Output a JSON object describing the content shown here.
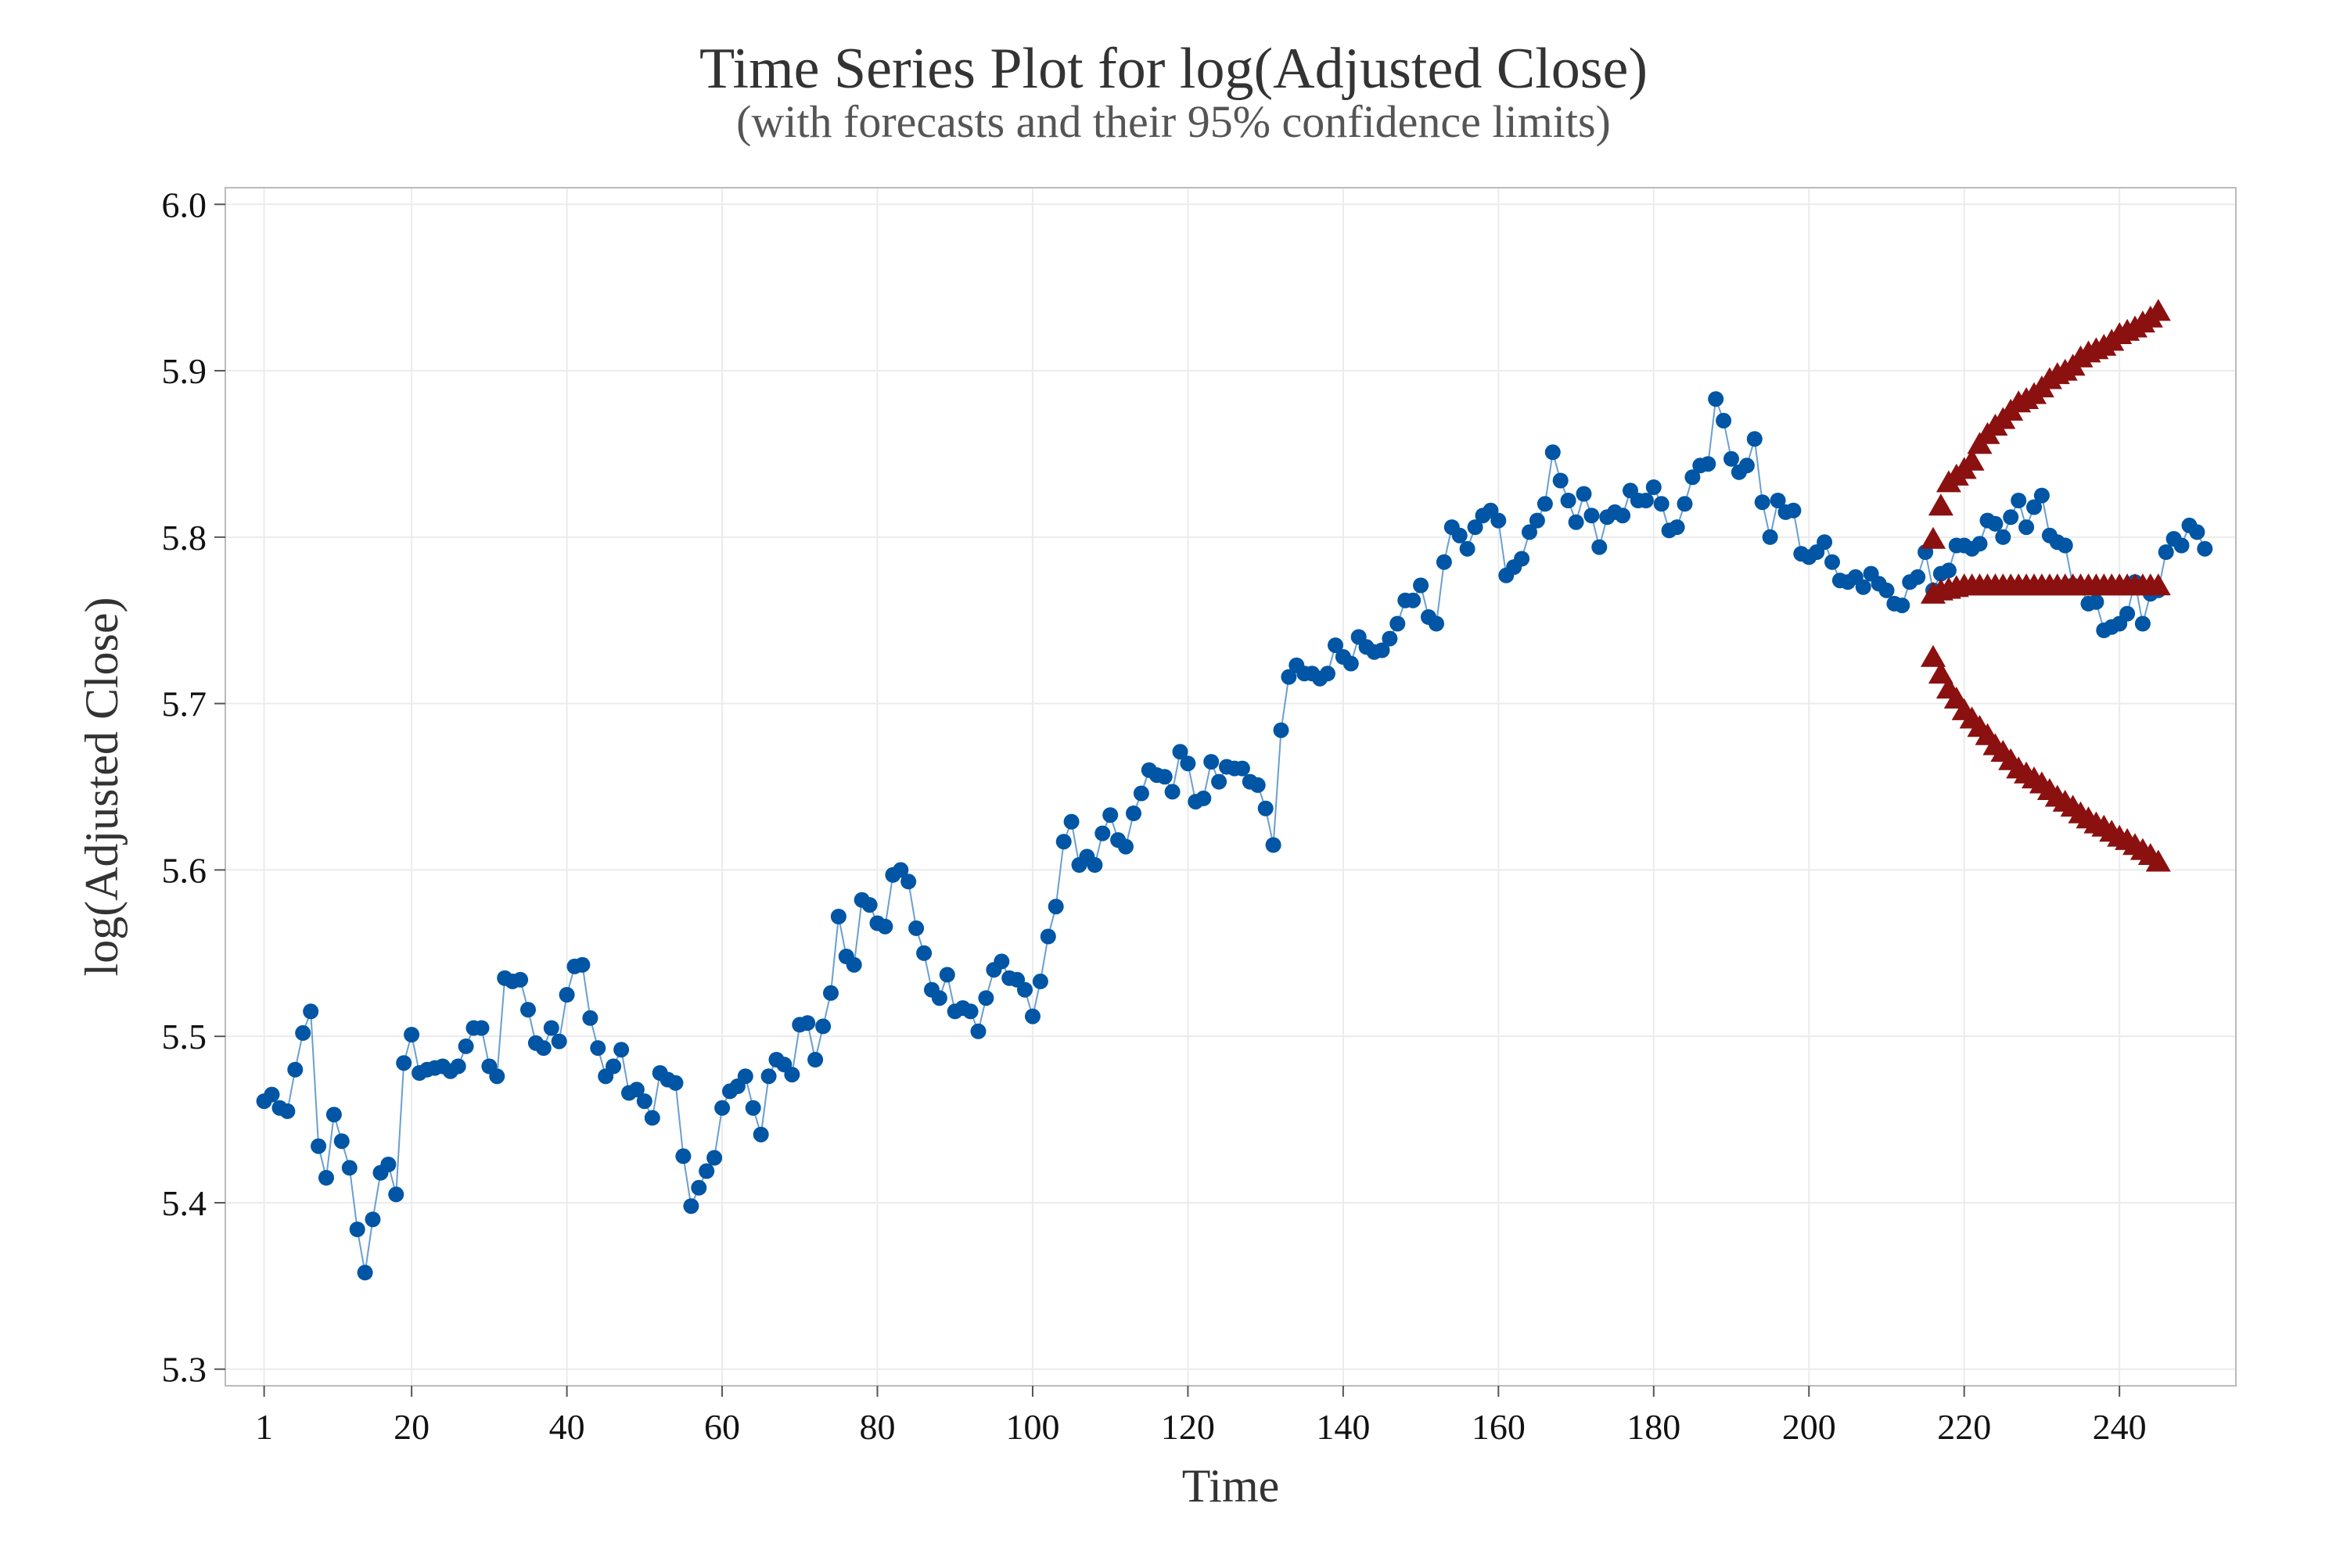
{
  "chart_data": {
    "type": "scatter",
    "title": "Time Series Plot for log(Adjusted Close)",
    "subtitle": "(with forecasts and their 95% confidence limits)",
    "xlabel": "Time",
    "ylabel": "log(Adjusted Close)",
    "xlim": [
      -4,
      255
    ],
    "ylim": [
      5.29,
      6.01
    ],
    "x_ticks": [
      1,
      20,
      40,
      60,
      80,
      100,
      120,
      140,
      160,
      180,
      200,
      220,
      240
    ],
    "y_ticks": [
      5.3,
      5.4,
      5.5,
      5.6,
      5.7,
      5.8,
      5.9,
      6.0
    ],
    "y_tick_labels": [
      "5.3",
      "5.4",
      "5.5",
      "5.6",
      "5.7",
      "5.8",
      "5.9",
      "6.0"
    ],
    "grid": true,
    "legend": "none",
    "colors": {
      "observed": "#0055a4",
      "observed_line": "#6a9fd0",
      "forecast": "#8b1010"
    },
    "series": [
      {
        "marker": "circle",
        "connected": true,
        "x_start": 1,
        "x_step": 1,
        "values": [
          5.461,
          5.465,
          5.457,
          5.455,
          5.48,
          5.502,
          5.515,
          5.434,
          5.415,
          5.453,
          5.437,
          5.421,
          5.384,
          5.358,
          5.39,
          5.418,
          5.423,
          5.405,
          5.484,
          5.501,
          5.478,
          5.48,
          5.481,
          5.482,
          5.479,
          5.482,
          5.494,
          5.505,
          5.505,
          5.482,
          5.476,
          5.535,
          5.533,
          5.534,
          5.516,
          5.496,
          5.493,
          5.505,
          5.497,
          5.525,
          5.542,
          5.543,
          5.511,
          5.493,
          5.476,
          5.482,
          5.492,
          5.466,
          5.468,
          5.461,
          5.451,
          5.478,
          5.474,
          5.472,
          5.428,
          5.398,
          5.409,
          5.419,
          5.427,
          5.457,
          5.467,
          5.47,
          5.476,
          5.457,
          5.441,
          5.476,
          5.486,
          5.483,
          5.477,
          5.507,
          5.508,
          5.486,
          5.506,
          5.526,
          5.572,
          5.548,
          5.543,
          5.582,
          5.579,
          5.568,
          5.566,
          5.597,
          5.6,
          5.593,
          5.565,
          5.55,
          5.528,
          5.523,
          5.537,
          5.515,
          5.517,
          5.515,
          5.503,
          5.523,
          5.54,
          5.545,
          5.535,
          5.534,
          5.528,
          5.512,
          5.533,
          5.56,
          5.578,
          5.617,
          5.629,
          5.603,
          5.608,
          5.603,
          5.622,
          5.633,
          5.618,
          5.614,
          5.634,
          5.646,
          5.66,
          5.657,
          5.656,
          5.647,
          5.671,
          5.664,
          5.641,
          5.643,
          5.665,
          5.653,
          5.662,
          5.661,
          5.661,
          5.653,
          5.651,
          5.637,
          5.615,
          5.684,
          5.716,
          5.723,
          5.718,
          5.718,
          5.715,
          5.718,
          5.735,
          5.728,
          5.724,
          5.74,
          5.734,
          5.731,
          5.732,
          5.739,
          5.748,
          5.762,
          5.762,
          5.771,
          5.752,
          5.748,
          5.785,
          5.806,
          5.801,
          5.793,
          5.806,
          5.813,
          5.816,
          5.81,
          5.777,
          5.782,
          5.787,
          5.803,
          5.81,
          5.82,
          5.851,
          5.834,
          5.822,
          5.809,
          5.826,
          5.813,
          5.794,
          5.812,
          5.815,
          5.813,
          5.828,
          5.822,
          5.822,
          5.83,
          5.82,
          5.804,
          5.806,
          5.82,
          5.836,
          5.843,
          5.844,
          5.883,
          5.87,
          5.847,
          5.839,
          5.843,
          5.859,
          5.821,
          5.8,
          5.822,
          5.815,
          5.816,
          5.79,
          5.788,
          5.791,
          5.797,
          5.785,
          5.774,
          5.773,
          5.776,
          5.77,
          5.778,
          5.772,
          5.768,
          5.76,
          5.759,
          5.773,
          5.776,
          5.791,
          5.768,
          5.778,
          5.78,
          5.795,
          5.795,
          5.793,
          5.796,
          5.81,
          5.808,
          5.8,
          5.812,
          5.822,
          5.806,
          5.818,
          5.825,
          5.801,
          5.797,
          5.795,
          5.771,
          5.77,
          5.76,
          5.761,
          5.744,
          5.746,
          5.748,
          5.754,
          5.773,
          5.748,
          5.766,
          5.768,
          5.791,
          5.799,
          5.795,
          5.807,
          5.803,
          5.793
        ]
      },
      {
        "name": "",
        "marker": "triangle",
        "x": [
          216,
          217,
          218,
          219,
          220,
          221,
          222,
          223,
          224,
          225,
          226,
          227,
          228,
          229,
          230,
          231,
          232,
          233,
          234,
          235,
          236,
          237,
          238,
          239,
          240,
          241,
          242,
          243,
          244,
          245
        ],
        "forecast": [
          5.765,
          5.767,
          5.768,
          5.769,
          5.77,
          5.77,
          5.77,
          5.77,
          5.77,
          5.77,
          5.77,
          5.77,
          5.77,
          5.77,
          5.77,
          5.77,
          5.77,
          5.77,
          5.77,
          5.77,
          5.77,
          5.77,
          5.77,
          5.77,
          5.77,
          5.77,
          5.77,
          5.77,
          5.77,
          5.77
        ],
        "upper_95": [
          5.798,
          5.818,
          5.832,
          5.836,
          5.84,
          5.845,
          5.855,
          5.861,
          5.866,
          5.87,
          5.875,
          5.88,
          5.882,
          5.885,
          5.889,
          5.894,
          5.897,
          5.899,
          5.902,
          5.907,
          5.91,
          5.912,
          5.914,
          5.917,
          5.921,
          5.923,
          5.925,
          5.928,
          5.931,
          5.935
        ],
        "lower_95": [
          5.727,
          5.717,
          5.708,
          5.702,
          5.695,
          5.69,
          5.685,
          5.68,
          5.674,
          5.67,
          5.665,
          5.66,
          5.657,
          5.654,
          5.651,
          5.647,
          5.643,
          5.64,
          5.637,
          5.633,
          5.63,
          5.627,
          5.625,
          5.622,
          5.619,
          5.617,
          5.614,
          5.611,
          5.608,
          5.604
        ]
      }
    ]
  }
}
